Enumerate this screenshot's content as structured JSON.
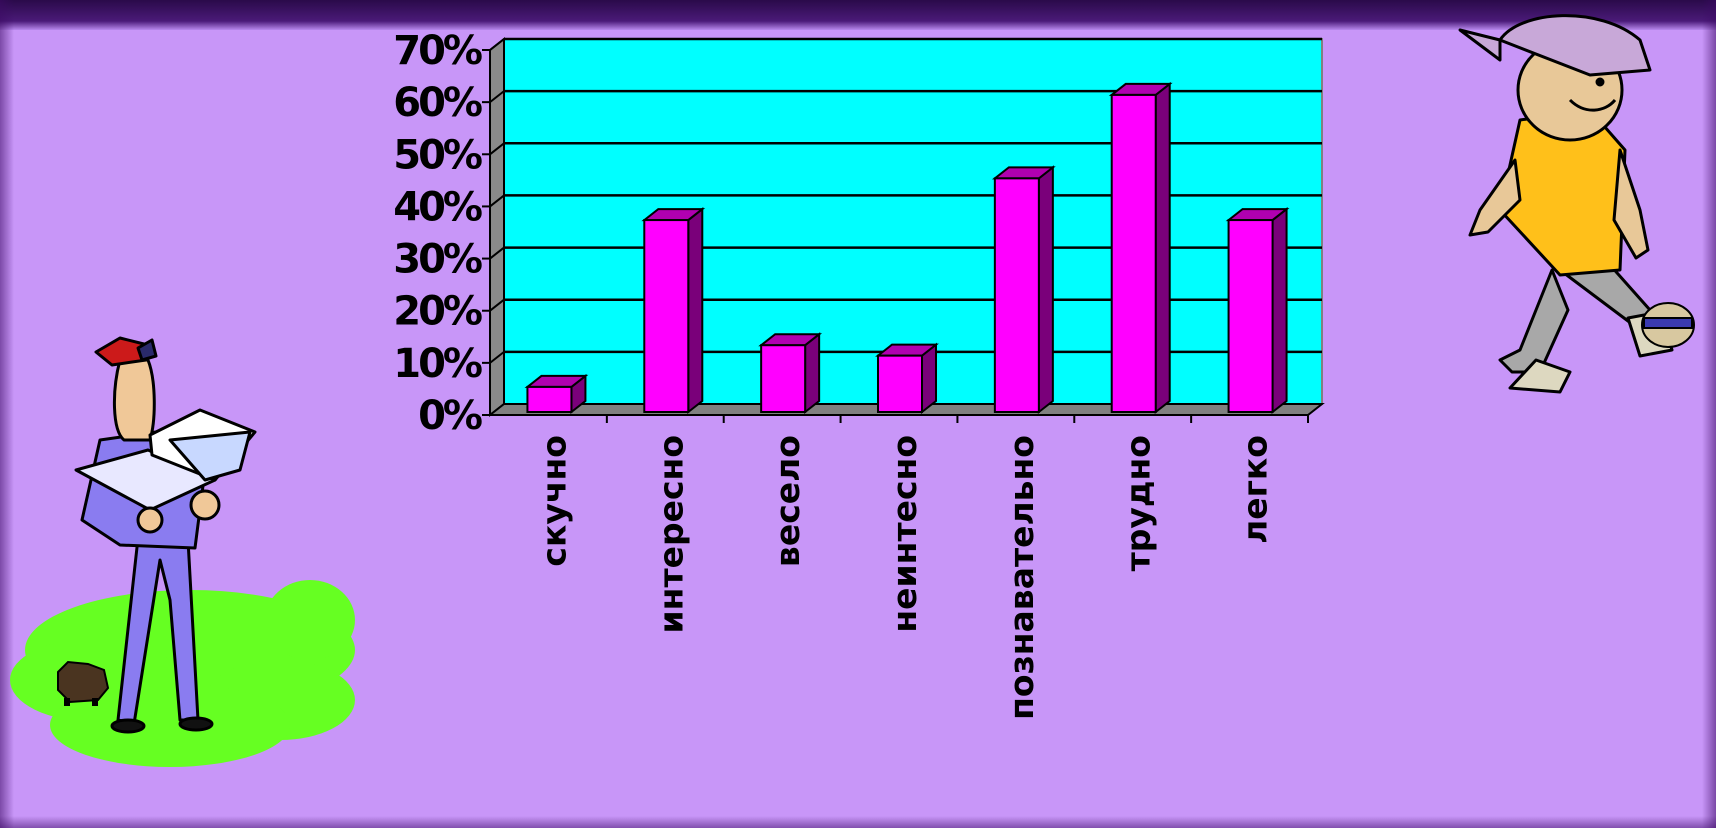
{
  "colors": {
    "background": "#c896f8",
    "plot_area": "#00ffff",
    "bar_front": "#ff00ff",
    "bar_side": "#7a007a",
    "bar_top": "#b000b0",
    "gridline": "#000000",
    "floor": "#808080"
  },
  "chart_data": {
    "type": "bar",
    "style": "3d-column",
    "categories": [
      "скучно",
      "интересно",
      "весело",
      "неинтесно",
      "познавательно",
      "трудно",
      "легко"
    ],
    "values": [
      5,
      37,
      13,
      11,
      45,
      61,
      37
    ],
    "unit": "%",
    "ylim": [
      0,
      70
    ],
    "yticks": [
      "0%",
      "10%",
      "20%",
      "30%",
      "40%",
      "50%",
      "60%",
      "70%"
    ],
    "grid": true,
    "legend": false
  },
  "decorations": {
    "left_clipart": "man-reading-laptop-with-dog-on-grass",
    "right_clipart": "boy-in-cap-kicking-ball"
  }
}
